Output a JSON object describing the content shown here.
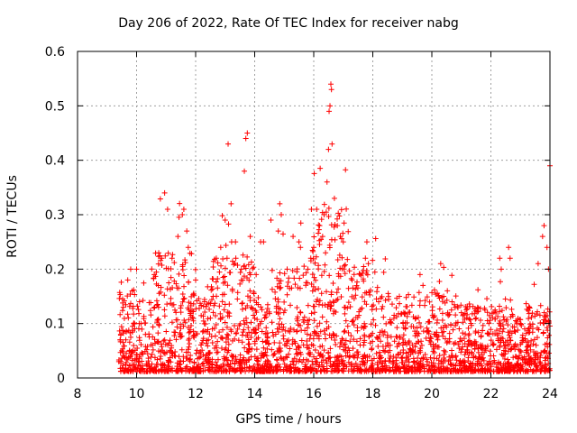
{
  "chart_data": {
    "type": "scatter",
    "title": "Day 206 of 2022, Rate Of TEC Index for receiver nabg",
    "xlabel": "GPS time / hours",
    "ylabel": "ROTI / TECUs",
    "xlim": [
      8,
      24
    ],
    "ylim": [
      0,
      0.6
    ],
    "xticks": [
      "8",
      "10",
      "12",
      "14",
      "16",
      "18",
      "20",
      "22",
      "24"
    ],
    "yticks": [
      "0",
      "0.1",
      "0.2",
      "0.3",
      "0.4",
      "0.5",
      "0.6"
    ],
    "grid": true,
    "marker": "+",
    "color": "#ff0000",
    "data_start_hour": 9.4,
    "data_end_hour": 24,
    "series": [
      {
        "points": [
          [
            9.4,
            0.03
          ],
          [
            9.45,
            0.07
          ],
          [
            9.5,
            0.05
          ],
          [
            9.55,
            0.13
          ],
          [
            9.7,
            0.18
          ],
          [
            9.8,
            0.2
          ],
          [
            9.85,
            0.16
          ],
          [
            9.9,
            0.1
          ],
          [
            10.0,
            0.2
          ],
          [
            10.1,
            0.14
          ],
          [
            10.3,
            0.08
          ],
          [
            10.6,
            0.19
          ],
          [
            10.75,
            0.23
          ],
          [
            10.85,
            0.22
          ],
          [
            10.95,
            0.34
          ],
          [
            11.05,
            0.31
          ],
          [
            11.2,
            0.22
          ],
          [
            11.4,
            0.26
          ],
          [
            11.55,
            0.3
          ],
          [
            11.6,
            0.31
          ],
          [
            11.7,
            0.27
          ],
          [
            11.75,
            0.24
          ],
          [
            12.0,
            0.18
          ],
          [
            12.3,
            0.14
          ],
          [
            12.5,
            0.11
          ],
          [
            12.7,
            0.22
          ],
          [
            12.85,
            0.24
          ],
          [
            13.0,
            0.29
          ],
          [
            13.1,
            0.43
          ],
          [
            13.2,
            0.32
          ],
          [
            13.35,
            0.25
          ],
          [
            13.55,
            0.2
          ],
          [
            13.65,
            0.38
          ],
          [
            13.7,
            0.44
          ],
          [
            13.75,
            0.45
          ],
          [
            13.85,
            0.26
          ],
          [
            14.05,
            0.19
          ],
          [
            14.2,
            0.25
          ],
          [
            14.3,
            0.25
          ],
          [
            14.55,
            0.29
          ],
          [
            14.8,
            0.27
          ],
          [
            14.85,
            0.32
          ],
          [
            14.9,
            0.3
          ],
          [
            15.1,
            0.2
          ],
          [
            15.3,
            0.26
          ],
          [
            15.5,
            0.25
          ],
          [
            15.55,
            0.24
          ],
          [
            15.8,
            0.2
          ],
          [
            15.9,
            0.22
          ],
          [
            16.0,
            0.24
          ],
          [
            16.1,
            0.31
          ],
          [
            16.2,
            0.28
          ],
          [
            16.3,
            0.26
          ],
          [
            16.35,
            0.3
          ],
          [
            16.4,
            0.23
          ],
          [
            16.45,
            0.36
          ],
          [
            16.5,
            0.42
          ],
          [
            16.52,
            0.49
          ],
          [
            16.55,
            0.5
          ],
          [
            16.58,
            0.54
          ],
          [
            16.6,
            0.53
          ],
          [
            16.62,
            0.43
          ],
          [
            16.7,
            0.33
          ],
          [
            16.8,
            0.28
          ],
          [
            16.9,
            0.26
          ],
          [
            17.0,
            0.25
          ],
          [
            17.3,
            0.18
          ],
          [
            17.75,
            0.22
          ],
          [
            17.8,
            0.25
          ],
          [
            17.85,
            0.21
          ],
          [
            18.2,
            0.14
          ],
          [
            18.9,
            0.15
          ],
          [
            19.6,
            0.19
          ],
          [
            19.7,
            0.17
          ],
          [
            20.3,
            0.21
          ],
          [
            20.4,
            0.15
          ],
          [
            21.0,
            0.12
          ],
          [
            21.5,
            0.11
          ],
          [
            22.3,
            0.22
          ],
          [
            22.35,
            0.2
          ],
          [
            22.6,
            0.24
          ],
          [
            22.65,
            0.22
          ],
          [
            23.0,
            0.1
          ],
          [
            23.3,
            0.13
          ],
          [
            23.6,
            0.21
          ],
          [
            23.75,
            0.26
          ],
          [
            23.8,
            0.28
          ],
          [
            23.9,
            0.24
          ],
          [
            23.95,
            0.2
          ],
          [
            24.0,
            0.39
          ]
        ]
      }
    ]
  }
}
